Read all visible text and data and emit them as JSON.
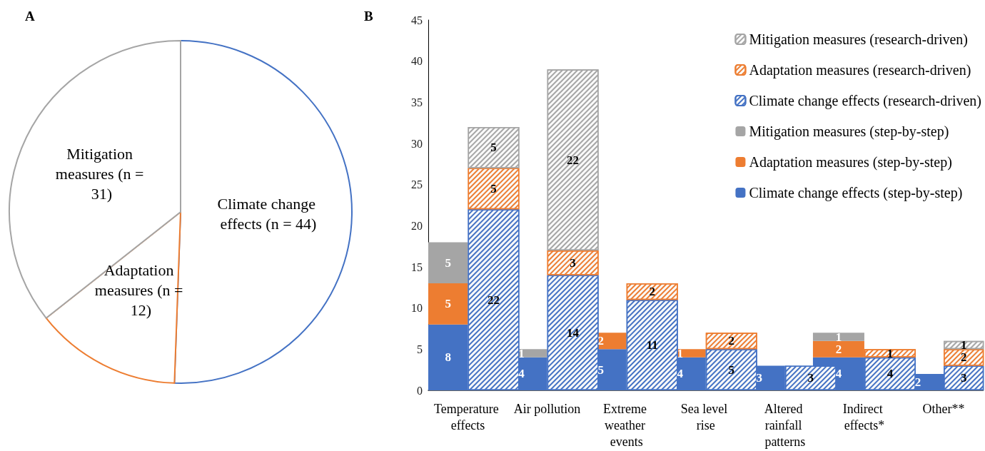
{
  "chart_data": [
    {
      "type": "pie",
      "title": "A",
      "categories": [
        "Climate change effects (n = 44)",
        "Adaptation measures (n = 12)",
        "Mitigation measures (n = 31)"
      ],
      "values": [
        44,
        12,
        31
      ],
      "colors": [
        "#4472c4",
        "#ed7d31",
        "#a5a5a5"
      ]
    },
    {
      "type": "bar",
      "title": "B",
      "categories": [
        "Temperature effects",
        "Air pollution",
        "Extreme weather events",
        "Sea level rise",
        "Altered rainfall patterns",
        "Indirect effects*",
        "Other**"
      ],
      "ylim": [
        0,
        45
      ],
      "yticks": [
        0,
        5,
        10,
        15,
        20,
        25,
        30,
        35,
        40,
        45
      ],
      "legend": "right",
      "data_labels": true,
      "series": [
        {
          "name": "Climate change effects (step-by-step)",
          "color": "#4472c4",
          "values": [
            8,
            4,
            5,
            4,
            3,
            4,
            2
          ],
          "base": [
            0,
            0,
            0,
            0,
            0,
            0,
            0
          ]
        },
        {
          "name": "Adaptation measures (step-by-step)",
          "color": "#ed7d31",
          "values": [
            5,
            null,
            2,
            1,
            null,
            2,
            null
          ],
          "base": [
            8,
            null,
            5,
            4,
            null,
            4,
            null
          ]
        },
        {
          "name": "Mitigation measures (step-by-step)",
          "color": "#a5a5a5",
          "values": [
            5,
            1,
            null,
            null,
            null,
            1,
            null
          ],
          "base": [
            13,
            4,
            null,
            null,
            null,
            6,
            null
          ]
        },
        {
          "name": "Climate change effects (research-driven)",
          "color": "#4472c4",
          "values": [
            22,
            14,
            11,
            5,
            3,
            4,
            3
          ],
          "base": [
            0,
            0,
            0,
            0,
            0,
            0,
            0
          ]
        },
        {
          "name": "Adaptation measures (research-driven)",
          "color": "#ed7d31",
          "values": [
            5,
            3,
            2,
            2,
            null,
            1,
            2
          ],
          "base": [
            22,
            14,
            11,
            5,
            null,
            4,
            3
          ]
        },
        {
          "name": "Mitigation measures (research-driven)",
          "color": "#a5a5a5",
          "values": [
            5,
            22,
            null,
            null,
            null,
            null,
            1
          ],
          "base": [
            27,
            17,
            null,
            null,
            null,
            null,
            5
          ]
        }
      ]
    }
  ]
}
